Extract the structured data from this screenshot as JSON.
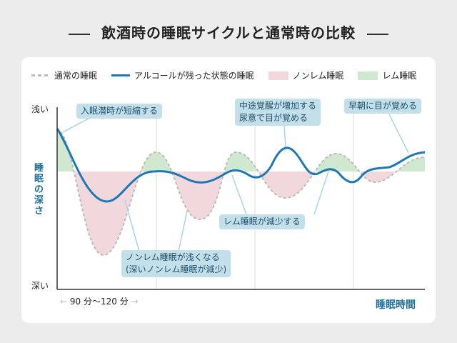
{
  "title": "飲酒時の睡眠サイクルと通常時の比較",
  "legend": {
    "normal": "通常の睡眠",
    "alcohol": "アルコールが残った状態の睡眠",
    "nonrem": "ノンレム睡眠",
    "rem": "レム睡眠"
  },
  "colors": {
    "alcohol": "#1f78b4",
    "normal": "#bbbbbb",
    "nonrem": "#f0d8dc",
    "rem": "#cfe8cf",
    "accent": "#1b6f9a"
  },
  "axis": {
    "shallow": "浅い",
    "deep": "深い",
    "y_title": "睡眠の深さ",
    "x_title": "睡眠時間",
    "range": "90 分〜120 分",
    "arrow_left": "←",
    "arrow_right": "→"
  },
  "notes": {
    "n1": "入眠潜時が短縮する",
    "n2a": "中途覚醒が増加する",
    "n2b": "尿意で目が覚める",
    "n3": "早朝に目が覚める",
    "n4": "レム睡眠が減少する",
    "n5a": "ノンレム睡眠が浅くなる",
    "n5b": "(深いノンレム睡眠が減少)"
  }
}
